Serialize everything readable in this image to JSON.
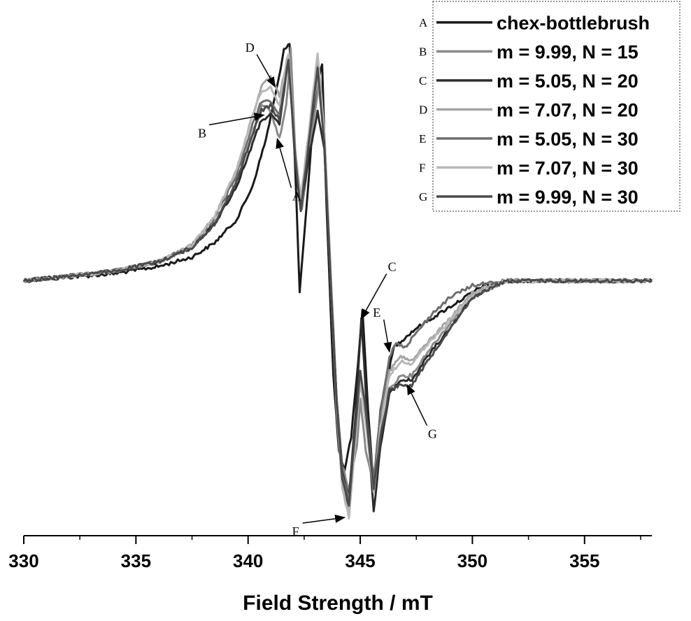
{
  "chart_data": {
    "type": "line",
    "title": "",
    "xlabel": "Field Strength / mT",
    "ylabel": "",
    "xlim": [
      330,
      358
    ],
    "ylim": [
      -1.0,
      1.0
    ],
    "xticks": [
      330,
      335,
      340,
      345,
      350,
      355
    ],
    "grid": false,
    "legend_position": "top-right",
    "series": [
      {
        "key": "A",
        "name": "chex-bottlebrush",
        "color": "#1a1a1a",
        "x": [
          330,
          334,
          336,
          337.5,
          338.5,
          339.5,
          340.2,
          340.8,
          341.3,
          341.6,
          341.85,
          342.05,
          342.3,
          342.6,
          342.95,
          343.3,
          343.5,
          343.8,
          344.05,
          344.3,
          344.6,
          344.9,
          345.1,
          345.35,
          345.6,
          345.9,
          346.5,
          347.0,
          347.5,
          348.5,
          349.5,
          350.5,
          352,
          355,
          358
        ],
        "y": [
          0.0,
          0.03,
          0.06,
          0.1,
          0.16,
          0.26,
          0.4,
          0.6,
          0.82,
          0.98,
          1.0,
          0.6,
          -0.05,
          0.3,
          0.75,
          0.92,
          0.3,
          -0.4,
          -0.72,
          -0.8,
          -0.66,
          -0.35,
          -0.12,
          -0.55,
          -0.87,
          -0.55,
          -0.28,
          -0.24,
          -0.2,
          -0.14,
          -0.08,
          -0.02,
          0.0,
          0.0,
          0.0
        ]
      },
      {
        "key": "B",
        "name": "m = 9.99, N = 15",
        "color": "#8a8a8a",
        "x": [
          330,
          334,
          336,
          337.5,
          338.5,
          339.5,
          340.2,
          340.6,
          341.0,
          341.4,
          341.7,
          341.9,
          342.1,
          342.4,
          342.8,
          343.2,
          343.4,
          343.7,
          343.95,
          344.2,
          344.5,
          344.85,
          345.0,
          345.25,
          345.6,
          345.9,
          346.3,
          346.8,
          347.3,
          348.0,
          349.0,
          350.0,
          351.5,
          355,
          358
        ],
        "y": [
          0.0,
          0.04,
          0.08,
          0.14,
          0.24,
          0.42,
          0.62,
          0.74,
          0.72,
          0.6,
          0.74,
          0.98,
          0.55,
          0.3,
          0.6,
          0.86,
          0.62,
          0.0,
          -0.5,
          -0.78,
          -0.88,
          -0.7,
          -0.5,
          -0.72,
          -0.86,
          -0.68,
          -0.46,
          -0.4,
          -0.4,
          -0.3,
          -0.18,
          -0.06,
          0.0,
          0.0,
          0.0
        ]
      },
      {
        "key": "C",
        "name": "m = 5.05, N = 20",
        "color": "#2b2b2b",
        "x": [
          330,
          334,
          336,
          337.5,
          338.5,
          339.5,
          340.2,
          340.6,
          341.0,
          341.4,
          341.8,
          342.1,
          342.35,
          342.7,
          343.1,
          343.4,
          343.7,
          343.95,
          344.2,
          344.5,
          344.8,
          345.05,
          345.3,
          345.6,
          345.9,
          346.3,
          346.8,
          347.3,
          348.0,
          349.0,
          350.0,
          351.5,
          355,
          358
        ],
        "y": [
          0.0,
          0.04,
          0.08,
          0.14,
          0.24,
          0.4,
          0.58,
          0.68,
          0.7,
          0.66,
          0.94,
          0.5,
          0.3,
          0.52,
          0.72,
          0.56,
          -0.05,
          -0.5,
          -0.8,
          -0.92,
          -0.55,
          -0.16,
          -0.55,
          -0.98,
          -0.7,
          -0.48,
          -0.42,
          -0.42,
          -0.32,
          -0.2,
          -0.07,
          0.0,
          0.0,
          0.0
        ]
      },
      {
        "key": "D",
        "name": "m = 7.07, N = 20",
        "color": "#a5a5a5",
        "x": [
          330,
          334,
          336,
          337.5,
          338.5,
          339.5,
          340.2,
          340.6,
          341.0,
          341.4,
          341.8,
          342.1,
          342.35,
          342.7,
          343.1,
          343.4,
          343.7,
          343.95,
          344.2,
          344.5,
          344.8,
          345.0,
          345.25,
          345.6,
          345.9,
          346.3,
          346.8,
          347.3,
          348.0,
          349.0,
          350.0,
          351.5,
          355,
          358
        ],
        "y": [
          0.0,
          0.04,
          0.08,
          0.15,
          0.27,
          0.47,
          0.7,
          0.82,
          0.86,
          0.78,
          0.96,
          0.55,
          0.34,
          0.62,
          0.86,
          0.6,
          -0.05,
          -0.52,
          -0.84,
          -0.97,
          -0.65,
          -0.42,
          -0.58,
          -0.86,
          -0.6,
          -0.38,
          -0.32,
          -0.34,
          -0.26,
          -0.16,
          -0.05,
          0.0,
          0.0,
          0.0
        ]
      },
      {
        "key": "E",
        "name": "m = 5.05, N = 30",
        "color": "#6e6e6e",
        "x": [
          330,
          334,
          336,
          337.5,
          338.5,
          339.5,
          340.2,
          340.6,
          341.0,
          341.4,
          341.8,
          342.1,
          342.35,
          342.7,
          343.1,
          343.4,
          343.7,
          343.95,
          344.2,
          344.5,
          344.8,
          345.0,
          345.25,
          345.6,
          345.9,
          346.3,
          346.6,
          347.0,
          347.5,
          348.2,
          349.0,
          350.0,
          351.5,
          355,
          358
        ],
        "y": [
          0.0,
          0.04,
          0.08,
          0.15,
          0.26,
          0.45,
          0.66,
          0.76,
          0.76,
          0.7,
          0.95,
          0.54,
          0.32,
          0.6,
          0.92,
          0.62,
          -0.05,
          -0.5,
          -0.82,
          -0.93,
          -0.62,
          -0.4,
          -0.55,
          -0.84,
          -0.56,
          -0.32,
          -0.26,
          -0.28,
          -0.22,
          -0.14,
          -0.07,
          -0.02,
          0.0,
          0.0,
          0.0
        ]
      },
      {
        "key": "F",
        "name": "m = 7.07, N = 30",
        "color": "#b8b8b8",
        "x": [
          330,
          334,
          336,
          337.5,
          338.5,
          339.5,
          340.2,
          340.6,
          341.0,
          341.4,
          341.8,
          342.1,
          342.35,
          342.7,
          343.1,
          343.4,
          343.7,
          343.95,
          344.2,
          344.5,
          344.8,
          345.0,
          345.25,
          345.6,
          345.9,
          346.3,
          346.8,
          347.3,
          348.0,
          349.0,
          350.0,
          351.5,
          355,
          358
        ],
        "y": [
          0.0,
          0.04,
          0.08,
          0.15,
          0.27,
          0.47,
          0.7,
          0.8,
          0.82,
          0.74,
          0.96,
          0.55,
          0.33,
          0.62,
          0.96,
          0.62,
          -0.05,
          -0.55,
          -0.88,
          -1.0,
          -0.66,
          -0.42,
          -0.6,
          -0.9,
          -0.62,
          -0.4,
          -0.34,
          -0.35,
          -0.27,
          -0.17,
          -0.06,
          0.0,
          0.0,
          0.0
        ]
      },
      {
        "key": "G",
        "name": "m = 9.99, N = 30",
        "color": "#4a4a4a",
        "x": [
          330,
          334,
          336,
          337.5,
          338.5,
          339.5,
          340.2,
          340.6,
          341.0,
          341.4,
          341.8,
          342.1,
          342.35,
          342.7,
          343.1,
          343.4,
          343.7,
          343.95,
          344.2,
          344.5,
          344.8,
          345.0,
          345.25,
          345.6,
          345.9,
          346.3,
          346.8,
          347.3,
          348.0,
          349.0,
          350.0,
          351.5,
          355,
          358
        ],
        "y": [
          0.0,
          0.04,
          0.08,
          0.14,
          0.24,
          0.42,
          0.62,
          0.72,
          0.74,
          0.68,
          0.94,
          0.52,
          0.3,
          0.58,
          0.9,
          0.58,
          -0.05,
          -0.52,
          -0.84,
          -0.95,
          -0.6,
          -0.38,
          -0.55,
          -0.88,
          -0.66,
          -0.46,
          -0.44,
          -0.44,
          -0.34,
          -0.2,
          -0.07,
          0.0,
          0.0,
          0.0
        ]
      }
    ],
    "annotations": [
      {
        "label": "A",
        "at": [
          341.3,
          0.6
        ]
      },
      {
        "label": "B",
        "at": [
          340.7,
          0.7
        ]
      },
      {
        "label": "C",
        "at": [
          345.05,
          -0.16
        ]
      },
      {
        "label": "D",
        "at": [
          341.2,
          0.82
        ]
      },
      {
        "label": "E",
        "at": [
          346.3,
          -0.3
        ]
      },
      {
        "label": "F",
        "at": [
          344.3,
          -1.0
        ]
      },
      {
        "label": "G",
        "at": [
          347.1,
          -0.44
        ]
      }
    ]
  }
}
